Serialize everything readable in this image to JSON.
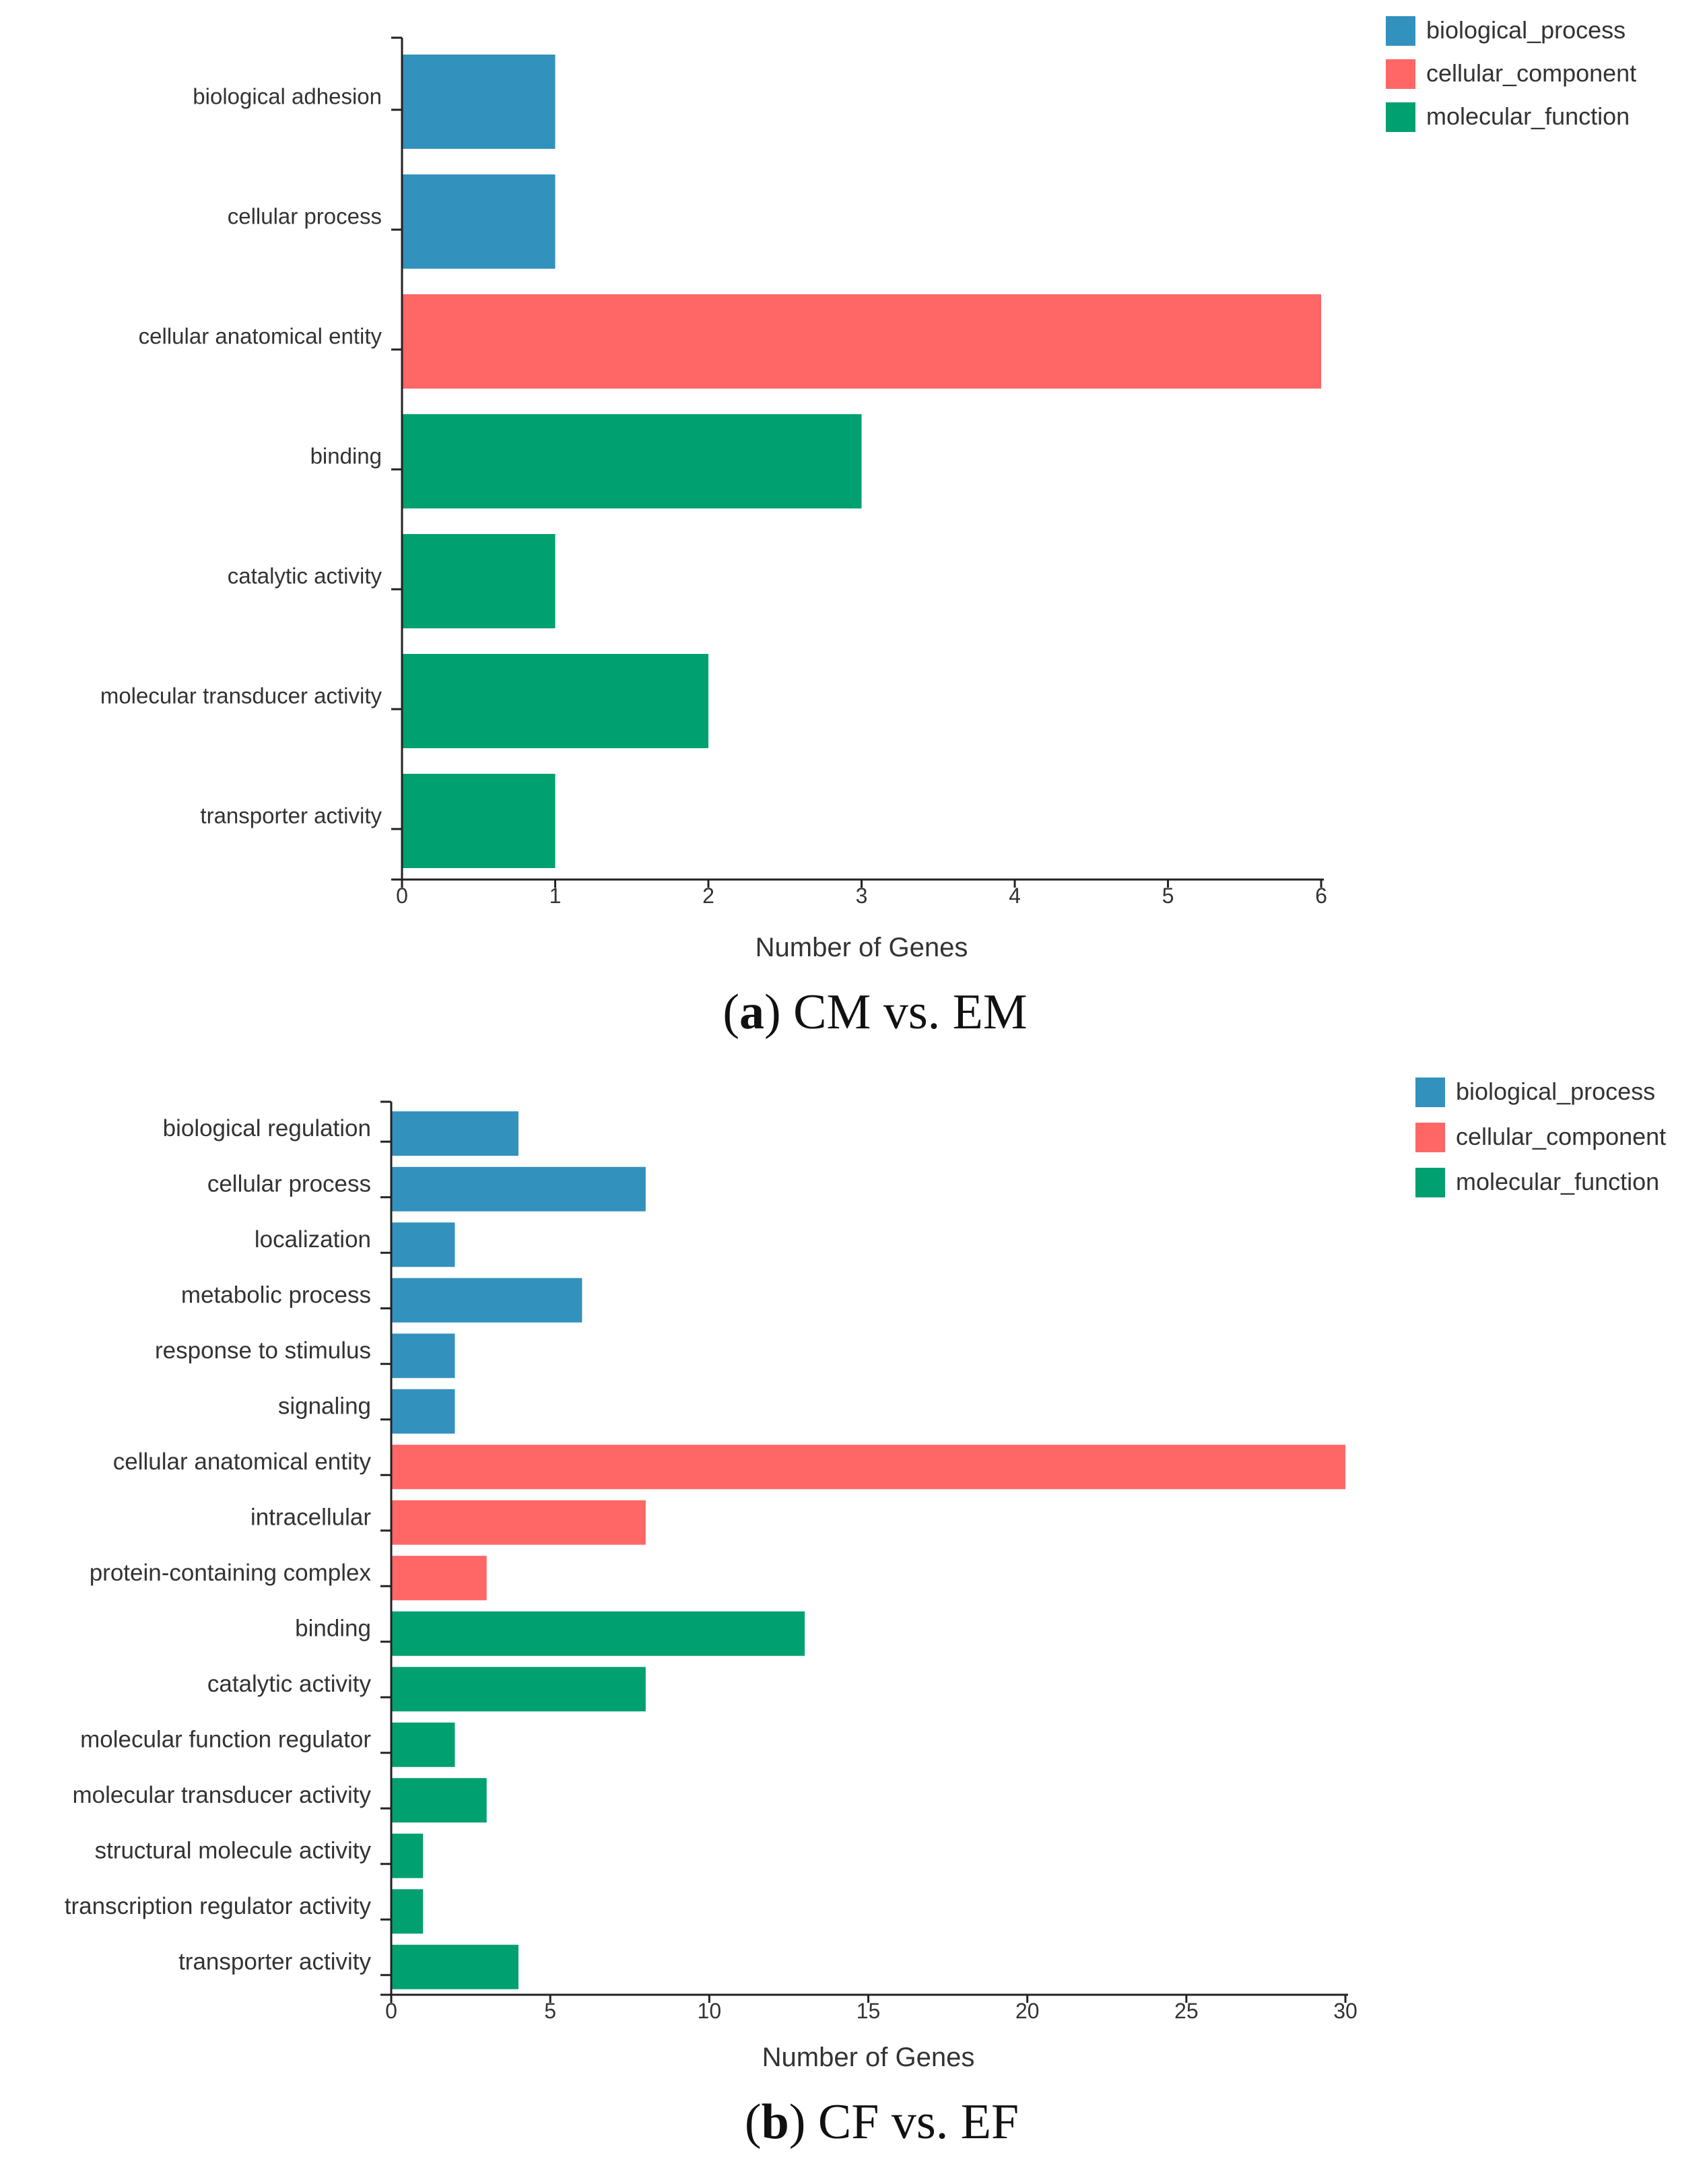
{
  "colors": {
    "biological_process": "#3391bd",
    "cellular_component": "#ff6666",
    "molecular_function": "#00a070",
    "axis": "#222222",
    "text": "#333333"
  },
  "chart_data": [
    {
      "type": "bar",
      "orientation": "horizontal",
      "caption_letter": "a",
      "caption_text": " CM vs. EM",
      "xlabel": "Number of Genes",
      "ylabel": "",
      "xlim": [
        0,
        6
      ],
      "xticks": [
        0,
        1,
        2,
        3,
        4,
        5,
        6
      ],
      "grid": false,
      "legend_position": "top-right",
      "legend": [
        "biological_process",
        "cellular_component",
        "molecular_function"
      ],
      "categories": [
        "biological adhesion",
        "cellular process",
        "cellular anatomical entity",
        "binding",
        "catalytic activity",
        "molecular transducer activity",
        "transporter activity"
      ],
      "values": [
        1,
        1,
        6,
        3,
        1,
        2,
        1
      ],
      "groups": [
        "biological_process",
        "biological_process",
        "cellular_component",
        "molecular_function",
        "molecular_function",
        "molecular_function",
        "molecular_function"
      ]
    },
    {
      "type": "bar",
      "orientation": "horizontal",
      "caption_letter": "b",
      "caption_text": " CF vs. EF",
      "xlabel": "Number of Genes",
      "ylabel": "",
      "xlim": [
        0,
        30
      ],
      "xticks": [
        0,
        5,
        10,
        15,
        20,
        25,
        30
      ],
      "grid": false,
      "legend_position": "top-right",
      "legend": [
        "biological_process",
        "cellular_component",
        "molecular_function"
      ],
      "categories": [
        "biological regulation",
        "cellular process",
        "localization",
        "metabolic process",
        "response to stimulus",
        "signaling",
        "cellular anatomical entity",
        "intracellular",
        "protein-containing complex",
        "binding",
        "catalytic activity",
        "molecular function regulator",
        "molecular transducer activity",
        "structural molecule activity",
        "transcription regulator activity",
        "transporter activity"
      ],
      "values": [
        4,
        8,
        2,
        6,
        2,
        2,
        30,
        8,
        3,
        13,
        8,
        2,
        3,
        1,
        1,
        4
      ],
      "groups": [
        "biological_process",
        "biological_process",
        "biological_process",
        "biological_process",
        "biological_process",
        "biological_process",
        "cellular_component",
        "cellular_component",
        "cellular_component",
        "molecular_function",
        "molecular_function",
        "molecular_function",
        "molecular_function",
        "molecular_function",
        "molecular_function",
        "molecular_function"
      ]
    }
  ]
}
